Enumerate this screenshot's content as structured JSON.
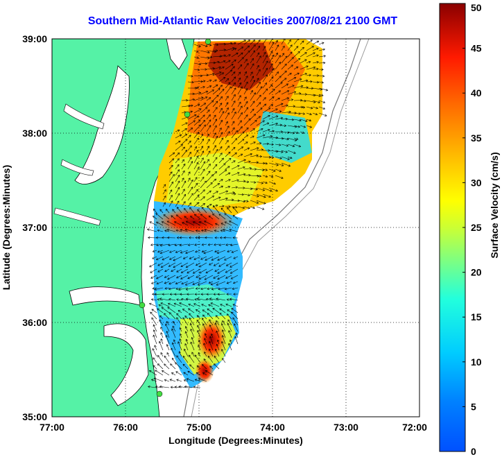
{
  "title": "Southern Mid-Atlantic Raw Velocities 2007/08/21 2100 GMT",
  "map": {
    "xlabel": "Longitude (Degrees:Minutes)",
    "ylabel": "Latitude (Degrees:Minutes)",
    "lon_ticks": [
      "77:00",
      "76:00",
      "75:00",
      "74:00",
      "73:00",
      "72:00"
    ],
    "lat_ticks": [
      "39:00",
      "38:00",
      "37:00",
      "36:00",
      "35:00"
    ],
    "lon_range": [
      -77,
      -72
    ],
    "lat_range": [
      35,
      39
    ],
    "grid": "dotted",
    "land_color": "#55f2a6",
    "water_color": "#ffffff",
    "station_color": "#44dd44"
  },
  "colorbar": {
    "label": "Surface Velocity (cm/s)",
    "ticks": [
      "0",
      "5",
      "10",
      "15",
      "20",
      "25",
      "30",
      "35",
      "40",
      "45",
      "50"
    ],
    "range": [
      0,
      50
    ],
    "colormap": "jet"
  }
}
